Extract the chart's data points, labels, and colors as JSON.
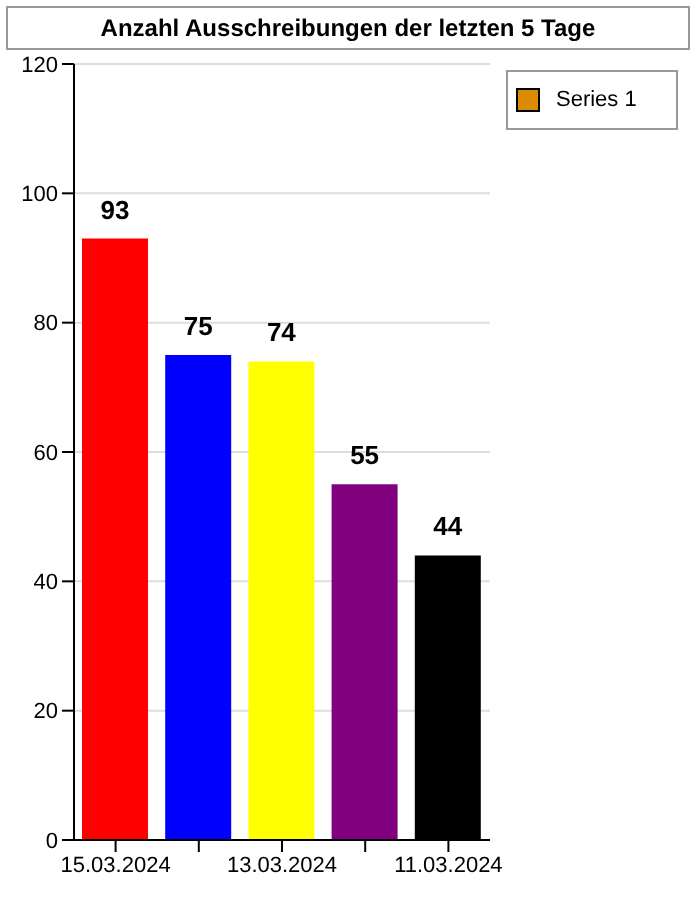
{
  "chart_data": {
    "type": "bar",
    "title": "Anzahl Ausschreibungen der letzten 5 Tage",
    "categories": [
      "15.03.2024",
      null,
      "13.03.2024",
      null,
      "11.03.2024"
    ],
    "series": [
      {
        "name": "Series 1",
        "color": "#d98c00",
        "colors": [
          "#ff0000",
          "#0000ff",
          "#ffff00",
          "#800080",
          "#000000"
        ],
        "values": [
          93,
          75,
          74,
          55,
          44
        ]
      }
    ],
    "ylim": [
      0,
      120
    ],
    "yticks": [
      0,
      20,
      40,
      60,
      80,
      100,
      120
    ],
    "grid": "y",
    "legend": "top right",
    "data_labels": true
  }
}
